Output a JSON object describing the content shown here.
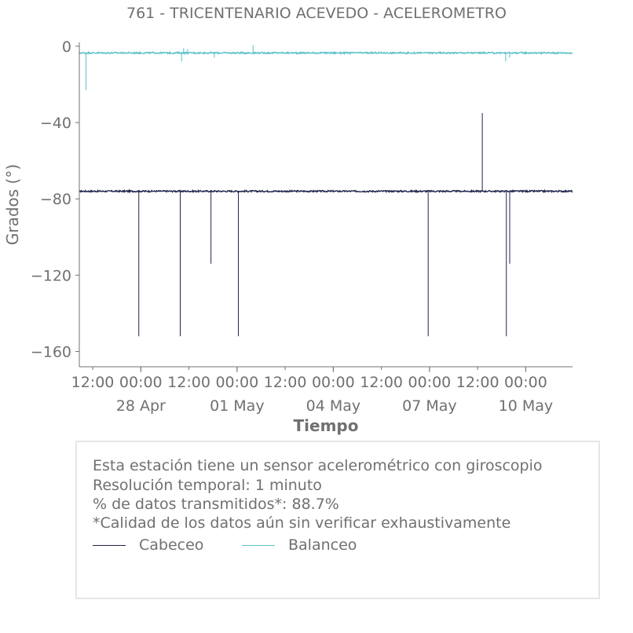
{
  "chart_data": {
    "type": "line",
    "title": "761 - TRICENTENARIO ACEVEDO - ACELEROMETRO",
    "ylabel": "Grados (°)",
    "xlabel": "Tiempo",
    "ylim": [
      -168,
      2
    ],
    "yticks": [
      0,
      -40,
      -80,
      -120,
      -160
    ],
    "xlim": [
      "2025-04-26T02:00",
      "2025-05-11T11:00"
    ],
    "x_minor_ticks": [
      {
        "t": "2025-04-26T12:00",
        "label": "12:00"
      },
      {
        "t": "2025-04-28T00:00",
        "label": "00:00"
      },
      {
        "t": "2025-04-29T12:00",
        "label": "12:00"
      },
      {
        "t": "2025-05-01T00:00",
        "label": "00:00"
      },
      {
        "t": "2025-05-02T12:00",
        "label": "12:00"
      },
      {
        "t": "2025-05-04T00:00",
        "label": "00:00"
      },
      {
        "t": "2025-05-05T12:00",
        "label": "12:00"
      },
      {
        "t": "2025-05-07T00:00",
        "label": "00:00"
      },
      {
        "t": "2025-05-08T12:00",
        "label": "12:00"
      },
      {
        "t": "2025-05-10T00:00",
        "label": "00:00"
      },
      {
        "t": "2025-05-11T12:00",
        "label": "12:00"
      }
    ],
    "x_major_ticks": [
      {
        "t": "2025-04-28T00:00",
        "label": "28 Apr"
      },
      {
        "t": "2025-05-01T00:00",
        "label": "01 May"
      },
      {
        "t": "2025-05-04T00:00",
        "label": "04 May"
      },
      {
        "t": "2025-05-07T00:00",
        "label": "07 May"
      },
      {
        "t": "2025-05-10T00:00",
        "label": "10 May"
      }
    ],
    "grid": false,
    "series": [
      {
        "name": "Cabeceo",
        "color": "#20254a",
        "baseline": -76,
        "spikes": [
          {
            "t": "2025-04-27T22:30",
            "y": -152
          },
          {
            "t": "2025-04-29T05:30",
            "y": -152
          },
          {
            "t": "2025-04-30T04:30",
            "y": -114
          },
          {
            "t": "2025-05-01T01:00",
            "y": -152
          },
          {
            "t": "2025-05-06T23:00",
            "y": -152
          },
          {
            "t": "2025-05-08T15:30",
            "y": -35
          },
          {
            "t": "2025-05-09T09:30",
            "y": -152
          },
          {
            "t": "2025-05-09T12:00",
            "y": -114
          }
        ]
      },
      {
        "name": "Balanceo",
        "color": "#5bc0c8",
        "baseline": -3.5,
        "spikes": [
          {
            "t": "2025-04-26T07:00",
            "y": -23
          },
          {
            "t": "2025-04-29T06:30",
            "y": -8
          },
          {
            "t": "2025-04-29T08:00",
            "y": -1
          },
          {
            "t": "2025-04-29T11:00",
            "y": -1.5
          },
          {
            "t": "2025-04-30T07:00",
            "y": -6
          },
          {
            "t": "2025-05-01T12:00",
            "y": 0.5
          },
          {
            "t": "2025-05-09T09:00",
            "y": -8
          },
          {
            "t": "2025-05-09T12:00",
            "y": -6
          }
        ]
      }
    ],
    "info": {
      "line1": "Esta estación tiene un sensor acelerométrico con giroscopio",
      "line2": "Resolución temporal: 1 minuto",
      "line3": "% de datos transmitidos*: 88.7%",
      "line4": "*Calidad de los datos aún sin verificar exhaustivamente"
    },
    "legend": [
      "Cabeceo",
      "Balanceo"
    ]
  }
}
